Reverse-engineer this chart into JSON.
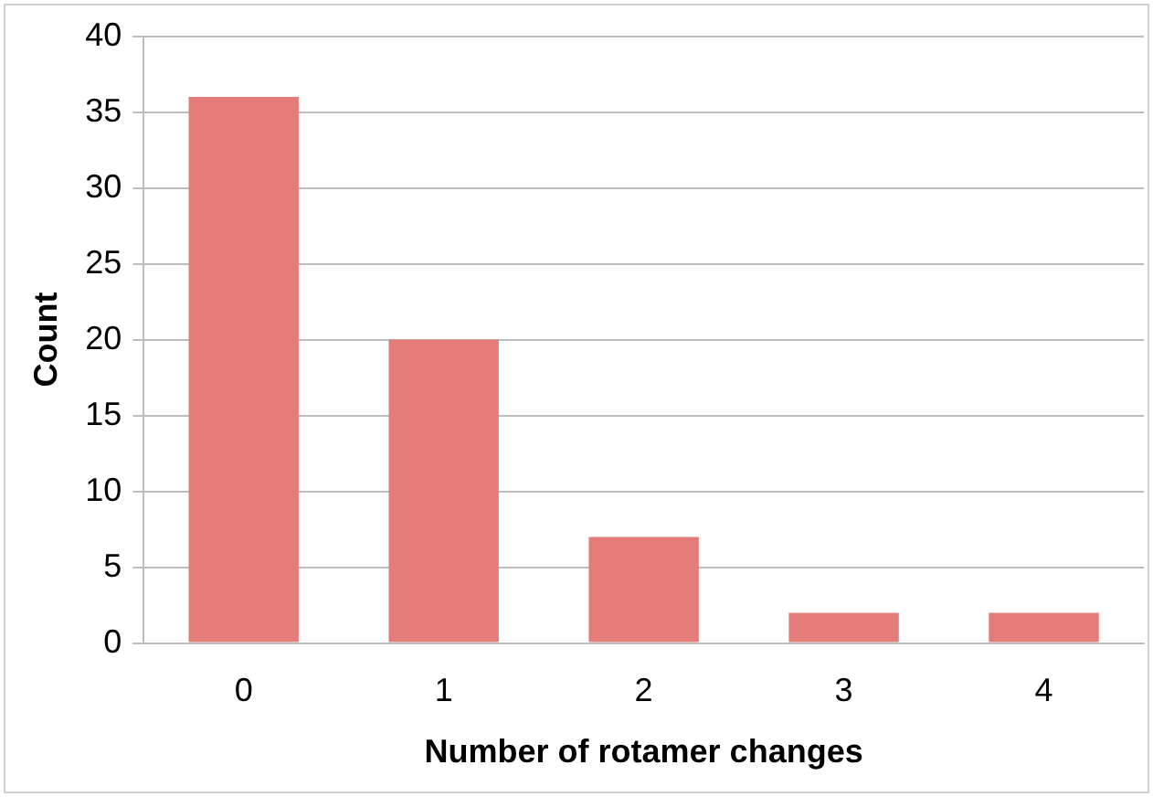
{
  "chart_data": {
    "type": "bar",
    "xlabel": "Number of rotamer changes",
    "ylabel": "Count",
    "categories": [
      "0",
      "1",
      "2",
      "3",
      "4"
    ],
    "values": [
      36,
      20,
      7,
      2,
      2
    ],
    "color": "#e47c7a",
    "ylim": [
      0,
      40
    ],
    "yticks": [
      0,
      5,
      10,
      15,
      20,
      25,
      30,
      35,
      40
    ],
    "grid": "y"
  }
}
